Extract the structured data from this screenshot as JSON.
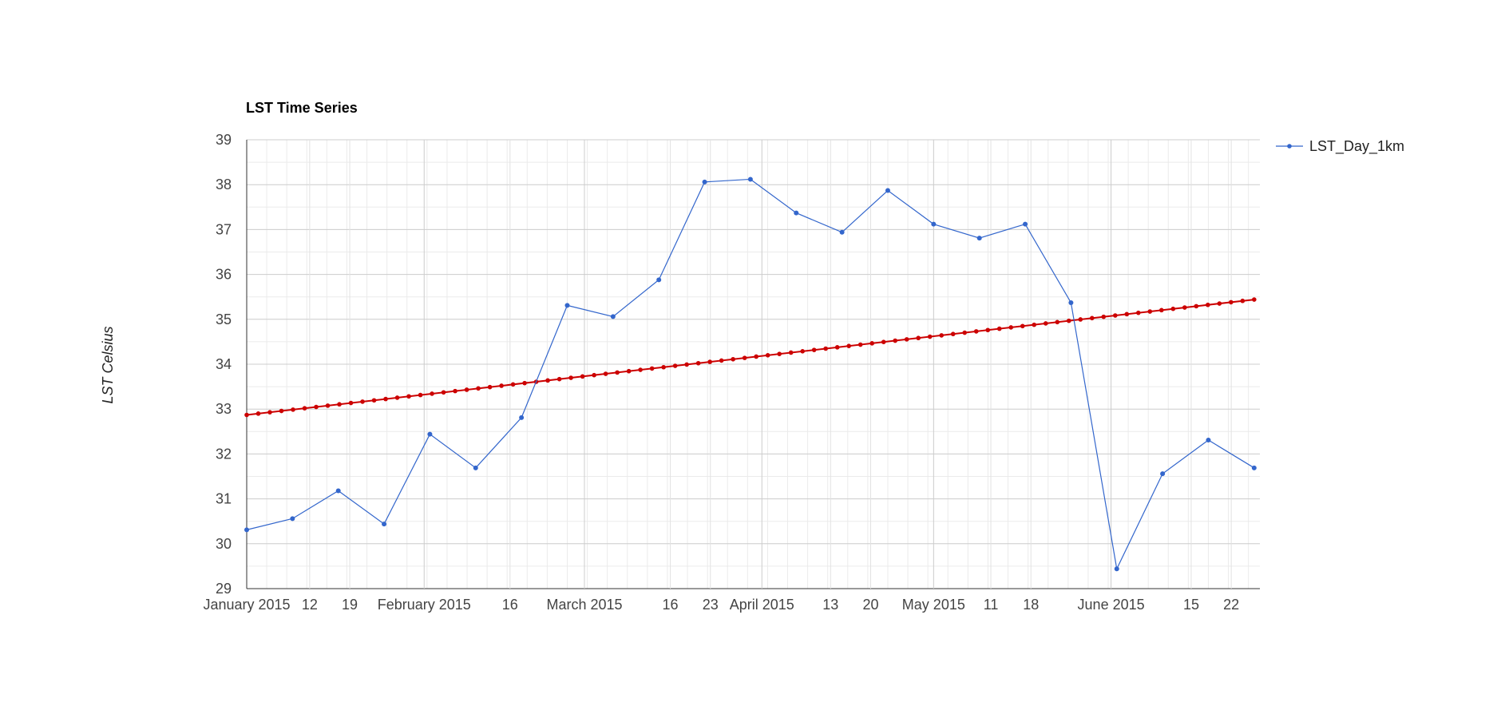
{
  "chart_data": {
    "type": "line",
    "title": "LST  Time Series",
    "xlabel": "",
    "ylabel": "LST Celsius",
    "ylim": [
      29,
      39
    ],
    "xlim": [
      "2015-01-01",
      "2015-06-27"
    ],
    "yticks": [
      29,
      30,
      31,
      32,
      33,
      34,
      35,
      36,
      37,
      38,
      39
    ],
    "xticks": [
      {
        "date": "2015-01-01",
        "label": "January 2015",
        "major": true
      },
      {
        "date": "2015-01-12",
        "label": "12",
        "major": false
      },
      {
        "date": "2015-01-19",
        "label": "19",
        "major": false
      },
      {
        "date": "2015-02-01",
        "label": "February 2015",
        "major": true
      },
      {
        "date": "2015-02-16",
        "label": "16",
        "major": false
      },
      {
        "date": "2015-03-01",
        "label": "March 2015",
        "major": true
      },
      {
        "date": "2015-03-16",
        "label": "16",
        "major": false
      },
      {
        "date": "2015-03-23",
        "label": "23",
        "major": false
      },
      {
        "date": "2015-04-01",
        "label": "April 2015",
        "major": true
      },
      {
        "date": "2015-04-13",
        "label": "13",
        "major": false
      },
      {
        "date": "2015-04-20",
        "label": "20",
        "major": false
      },
      {
        "date": "2015-05-01",
        "label": "May 2015",
        "major": true
      },
      {
        "date": "2015-05-11",
        "label": "11",
        "major": false
      },
      {
        "date": "2015-05-18",
        "label": "18",
        "major": false
      },
      {
        "date": "2015-06-01",
        "label": "June 2015",
        "major": true
      },
      {
        "date": "2015-06-15",
        "label": "15",
        "major": false
      },
      {
        "date": "2015-06-22",
        "label": "22",
        "major": false
      }
    ],
    "grid": true,
    "legend": "top-right",
    "series": [
      {
        "name": "LST_Day_1km",
        "color": "#3366cc",
        "points": [
          {
            "x": "2015-01-01",
            "y": 30.31
          },
          {
            "x": "2015-01-09",
            "y": 30.56
          },
          {
            "x": "2015-01-17",
            "y": 31.18
          },
          {
            "x": "2015-01-25",
            "y": 30.44
          },
          {
            "x": "2015-02-02",
            "y": 32.44
          },
          {
            "x": "2015-02-10",
            "y": 31.69
          },
          {
            "x": "2015-02-18",
            "y": 32.81
          },
          {
            "x": "2015-02-26",
            "y": 35.31
          },
          {
            "x": "2015-03-06",
            "y": 35.06
          },
          {
            "x": "2015-03-14",
            "y": 35.88
          },
          {
            "x": "2015-03-22",
            "y": 38.06
          },
          {
            "x": "2015-03-30",
            "y": 38.12
          },
          {
            "x": "2015-04-07",
            "y": 37.37
          },
          {
            "x": "2015-04-15",
            "y": 36.94
          },
          {
            "x": "2015-04-23",
            "y": 37.87
          },
          {
            "x": "2015-05-01",
            "y": 37.12
          },
          {
            "x": "2015-05-09",
            "y": 36.81
          },
          {
            "x": "2015-05-17",
            "y": 37.12
          },
          {
            "x": "2015-05-25",
            "y": 35.37
          },
          {
            "x": "2015-06-02",
            "y": 29.44
          },
          {
            "x": "2015-06-10",
            "y": 31.56
          },
          {
            "x": "2015-06-18",
            "y": 32.31
          },
          {
            "x": "2015-06-26",
            "y": 31.69
          }
        ]
      },
      {
        "name": "",
        "color": "#cc0000",
        "line_type": "trendline",
        "start": {
          "x": "2015-01-01",
          "y": 32.87
        },
        "end": {
          "x": "2015-06-26",
          "y": 35.44
        },
        "point_count": 88
      }
    ]
  }
}
